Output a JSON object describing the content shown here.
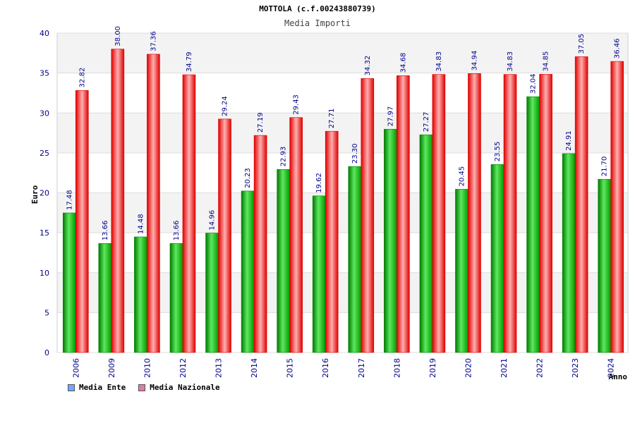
{
  "chart_data": {
    "type": "bar",
    "title": "MOTTOLA (c.f.00243880739)",
    "subtitle": "Media Importi",
    "xlabel": "Anno",
    "ylabel": "Euro",
    "ylim": [
      0,
      40
    ],
    "yticks": [
      "0",
      "5",
      "10",
      "15",
      "20",
      "25",
      "30",
      "35",
      "40"
    ],
    "categories": [
      "2006",
      "2009",
      "2010",
      "2012",
      "2013",
      "2014",
      "2015",
      "2016",
      "2017",
      "2018",
      "2019",
      "2020",
      "2021",
      "2022",
      "2023",
      "2024"
    ],
    "series": [
      {
        "name": "Media Ente",
        "color": "#00aa00",
        "legend_color": "#6fa8ff",
        "values": [
          17.48,
          13.66,
          14.48,
          13.66,
          14.96,
          20.23,
          22.93,
          19.62,
          23.3,
          27.97,
          27.27,
          20.45,
          23.55,
          32.04,
          24.91,
          21.7
        ],
        "labels": [
          "17.48",
          "13.66",
          "14.48",
          "13.66",
          "14.96",
          "20.23",
          "22.93",
          "19.62",
          "23.30",
          "27.97",
          "27.27",
          "20.45",
          "23.55",
          "32.04",
          "24.91",
          "21.70"
        ]
      },
      {
        "name": "Media Nazionale",
        "color": "#ff0000",
        "legend_color": "#e07aa8",
        "values": [
          32.82,
          38.0,
          37.36,
          34.79,
          29.24,
          27.19,
          29.43,
          27.71,
          34.32,
          34.68,
          34.83,
          34.94,
          34.83,
          34.85,
          37.05,
          36.46
        ],
        "labels": [
          "32.82",
          "38.00",
          "37.36",
          "34.79",
          "29.24",
          "27.19",
          "29.43",
          "27.71",
          "34.32",
          "34.68",
          "34.83",
          "34.94",
          "34.83",
          "34.85",
          "37.05",
          "36.46"
        ]
      }
    ],
    "grid": true,
    "legend_position": "bottom-left"
  }
}
